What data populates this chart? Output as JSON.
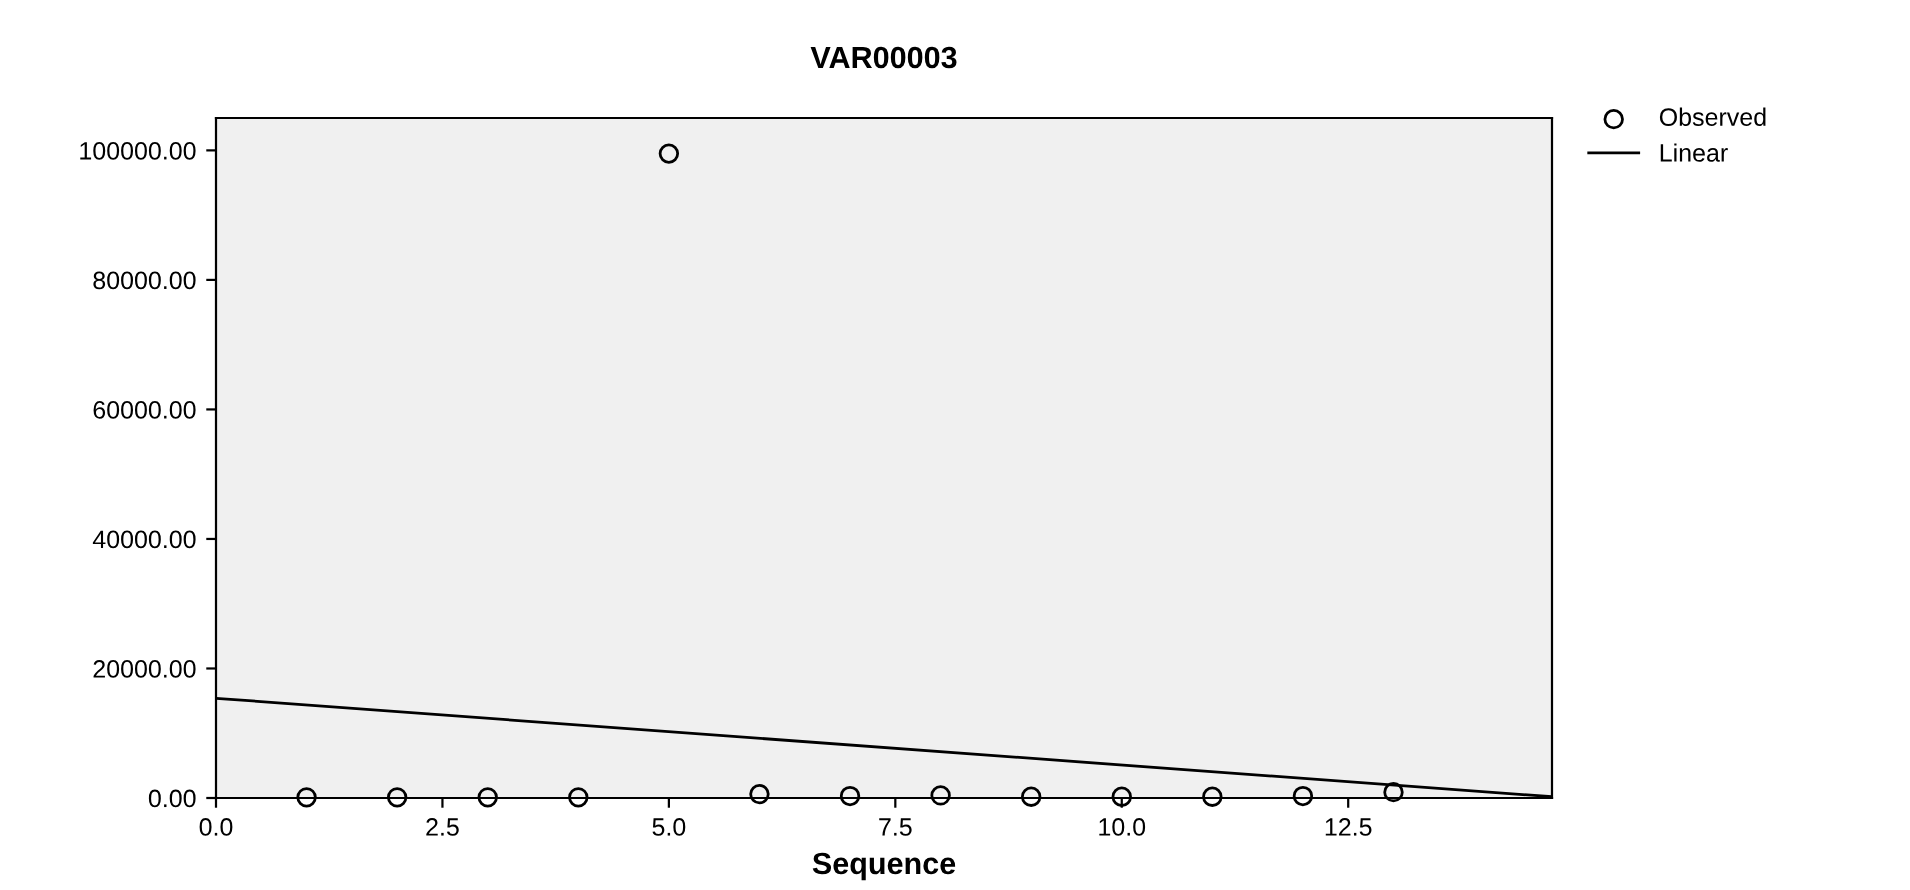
{
  "chart_data": {
    "type": "scatter",
    "title": "VAR00003",
    "xlabel": "Sequence",
    "xlim": [
      0,
      14.75
    ],
    "xticks": [
      {
        "value": 0,
        "label": "0.0"
      },
      {
        "value": 2.5,
        "label": "2.5"
      },
      {
        "value": 5,
        "label": "5.0"
      },
      {
        "value": 7.5,
        "label": "7.5"
      },
      {
        "value": 10,
        "label": "10.0"
      },
      {
        "value": 12.5,
        "label": "12.5"
      }
    ],
    "ylim": [
      0,
      105000
    ],
    "yticks": [
      {
        "value": 0,
        "label": "0.00"
      },
      {
        "value": 20000,
        "label": "20000.00"
      },
      {
        "value": 40000,
        "label": "40000.00"
      },
      {
        "value": 60000,
        "label": "60000.00"
      },
      {
        "value": 80000,
        "label": "80000.00"
      },
      {
        "value": 100000,
        "label": "100000.00"
      }
    ],
    "grid": false,
    "legend": "top right",
    "series": [
      {
        "name": "Observed",
        "marker": "circle",
        "color": "#000000",
        "x": [
          1,
          2,
          3,
          4,
          5,
          6,
          7,
          8,
          9,
          10,
          11,
          12,
          13
        ],
        "values": [
          100,
          100,
          100,
          100,
          99500,
          600,
          300,
          400,
          200,
          200,
          200,
          300,
          900
        ]
      },
      {
        "name": "Linear",
        "type": "line",
        "line_style": "solid",
        "color": "#000000",
        "x": [
          0,
          14.75
        ],
        "values": [
          15400,
          200
        ]
      }
    ]
  }
}
